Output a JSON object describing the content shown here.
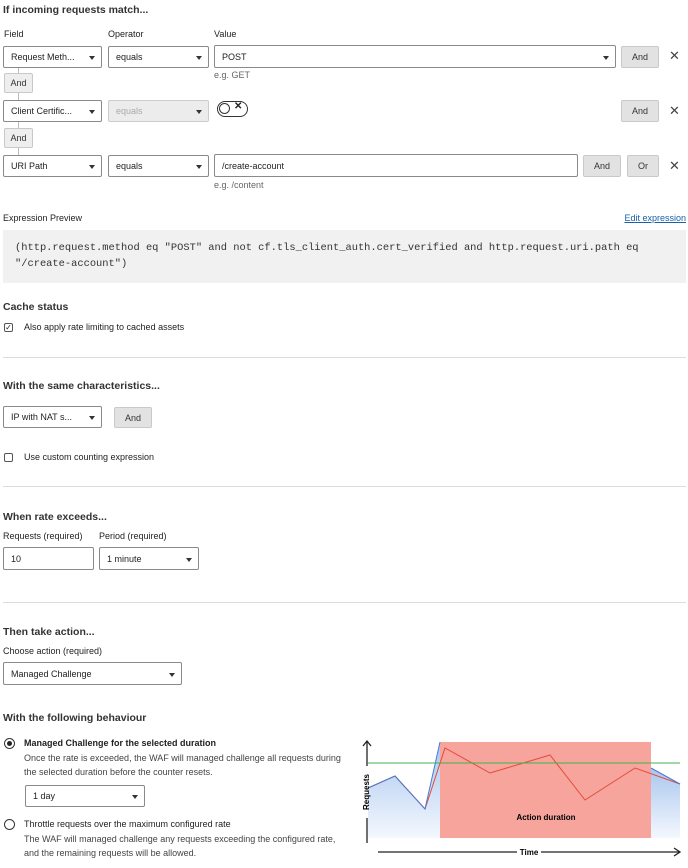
{
  "match": {
    "heading": "If incoming requests match...",
    "columns": [
      "Field",
      "Operator",
      "Value"
    ],
    "rows": [
      {
        "field": "Request Meth...",
        "operator": "equals",
        "value": "POST",
        "hint": "e.g. GET",
        "buttons": [
          "And"
        ]
      },
      {
        "field": "Client Certific...",
        "operator": "equals",
        "buttons": [
          "And"
        ]
      },
      {
        "field": "URI Path",
        "operator": "equals",
        "value": "/create-account",
        "hint": "e.g. /content",
        "buttons": [
          "And",
          "Or"
        ]
      }
    ],
    "connectors": [
      "And",
      "And"
    ]
  },
  "expression": {
    "label": "Expression Preview",
    "link": "Edit expression",
    "code": "(http.request.method eq \"POST\" and not cf.tls_client_auth.cert_verified and http.request.uri.path eq \"/create-account\")"
  },
  "cache": {
    "heading": "Cache status",
    "checkbox": "Also apply rate limiting to cached assets"
  },
  "characteristics": {
    "heading": "With the same characteristics...",
    "select": "IP with NAT s...",
    "button": "And",
    "checkbox": "Use custom counting expression"
  },
  "rate": {
    "heading": "When rate exceeds...",
    "requests_label": "Requests (required)",
    "requests": "10",
    "period_label": "Period (required)",
    "period": "1 minute"
  },
  "action": {
    "heading": "Then take action...",
    "label": "Choose action (required)",
    "select": "Managed Challenge"
  },
  "behaviour": {
    "heading": "With the following behaviour",
    "options": [
      {
        "title": "Managed Challenge for the selected duration",
        "text": "Once the rate is exceeded, the WAF will managed challenge all requests during the selected duration before the counter resets.",
        "select": "1 day"
      },
      {
        "title": "Throttle requests over the maximum configured rate",
        "text": "The WAF will managed challenge any requests exceeding the configured rate, and the remaining requests will be allowed."
      }
    ],
    "diagram": {
      "y_label": "Requests",
      "x_label": "Time",
      "region_label": "Action duration"
    }
  }
}
